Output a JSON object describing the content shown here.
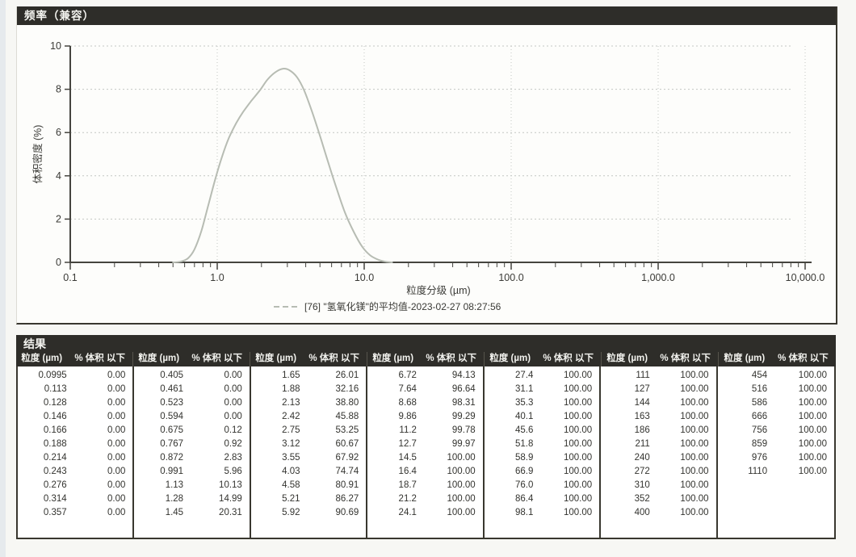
{
  "colors": {
    "header_bar": "#2e2d29",
    "curve": "#b7bcb3",
    "grid": "#c3c7c3",
    "axis": "#45443f",
    "text": "#3a3a36"
  },
  "frequency_panel": {
    "title": "频率（兼容）"
  },
  "chart_data": {
    "type": "line",
    "title": "频率（兼容）",
    "xlabel": "粒度分级 (µm)",
    "ylabel": "体积密度 (%)",
    "x_scale": "log",
    "xlim": [
      0.1,
      10000
    ],
    "ylim": [
      0,
      10
    ],
    "x_tick_labels": [
      "0.1",
      "1.0",
      "10.0",
      "100.0",
      "1,000.0",
      "10,000.0"
    ],
    "y_ticks": [
      0,
      2,
      4,
      6,
      8,
      10
    ],
    "grid": true,
    "legend_position": "bottom-center",
    "legend": "[76] \"氢氧化镁\"的平均值-2023-02-27 08:27:56",
    "series": [
      {
        "name": "[76] \"氢氧化镁\"的平均值-2023-02-27 08:27:56",
        "x": [
          0.5,
          0.56,
          0.63,
          0.7,
          0.78,
          0.87,
          0.97,
          1.08,
          1.2,
          1.35,
          1.5,
          1.7,
          1.95,
          2.2,
          2.5,
          2.8,
          3.1,
          3.5,
          3.9,
          4.4,
          5.0,
          5.7,
          6.5,
          7.4,
          8.5,
          9.7,
          11.0,
          12.5,
          14.0,
          15.5
        ],
        "y": [
          0,
          0.03,
          0.18,
          0.6,
          1.45,
          2.65,
          3.85,
          4.9,
          5.75,
          6.45,
          6.95,
          7.45,
          7.95,
          8.45,
          8.8,
          8.95,
          8.88,
          8.55,
          7.95,
          7.0,
          5.85,
          4.6,
          3.4,
          2.3,
          1.4,
          0.72,
          0.32,
          0.12,
          0.03,
          0
        ]
      }
    ]
  },
  "results": {
    "title": "结果",
    "size_header": "粒度 (µm)",
    "pct_header": "% 体积 以下",
    "groups": [
      [
        [
          "0.0995",
          "0.00"
        ],
        [
          "0.113",
          "0.00"
        ],
        [
          "0.128",
          "0.00"
        ],
        [
          "0.146",
          "0.00"
        ],
        [
          "0.166",
          "0.00"
        ],
        [
          "0.188",
          "0.00"
        ],
        [
          "0.214",
          "0.00"
        ],
        [
          "0.243",
          "0.00"
        ],
        [
          "0.276",
          "0.00"
        ],
        [
          "0.314",
          "0.00"
        ],
        [
          "0.357",
          "0.00"
        ]
      ],
      [
        [
          "0.405",
          "0.00"
        ],
        [
          "0.461",
          "0.00"
        ],
        [
          "0.523",
          "0.00"
        ],
        [
          "0.594",
          "0.00"
        ],
        [
          "0.675",
          "0.12"
        ],
        [
          "0.767",
          "0.92"
        ],
        [
          "0.872",
          "2.83"
        ],
        [
          "0.991",
          "5.96"
        ],
        [
          "1.13",
          "10.13"
        ],
        [
          "1.28",
          "14.99"
        ],
        [
          "1.45",
          "20.31"
        ]
      ],
      [
        [
          "1.65",
          "26.01"
        ],
        [
          "1.88",
          "32.16"
        ],
        [
          "2.13",
          "38.80"
        ],
        [
          "2.42",
          "45.88"
        ],
        [
          "2.75",
          "53.25"
        ],
        [
          "3.12",
          "60.67"
        ],
        [
          "3.55",
          "67.92"
        ],
        [
          "4.03",
          "74.74"
        ],
        [
          "4.58",
          "80.91"
        ],
        [
          "5.21",
          "86.27"
        ],
        [
          "5.92",
          "90.69"
        ]
      ],
      [
        [
          "6.72",
          "94.13"
        ],
        [
          "7.64",
          "96.64"
        ],
        [
          "8.68",
          "98.31"
        ],
        [
          "9.86",
          "99.29"
        ],
        [
          "11.2",
          "99.78"
        ],
        [
          "12.7",
          "99.97"
        ],
        [
          "14.5",
          "100.00"
        ],
        [
          "16.4",
          "100.00"
        ],
        [
          "18.7",
          "100.00"
        ],
        [
          "21.2",
          "100.00"
        ],
        [
          "24.1",
          "100.00"
        ]
      ],
      [
        [
          "27.4",
          "100.00"
        ],
        [
          "31.1",
          "100.00"
        ],
        [
          "35.3",
          "100.00"
        ],
        [
          "40.1",
          "100.00"
        ],
        [
          "45.6",
          "100.00"
        ],
        [
          "51.8",
          "100.00"
        ],
        [
          "58.9",
          "100.00"
        ],
        [
          "66.9",
          "100.00"
        ],
        [
          "76.0",
          "100.00"
        ],
        [
          "86.4",
          "100.00"
        ],
        [
          "98.1",
          "100.00"
        ]
      ],
      [
        [
          "111",
          "100.00"
        ],
        [
          "127",
          "100.00"
        ],
        [
          "144",
          "100.00"
        ],
        [
          "163",
          "100.00"
        ],
        [
          "186",
          "100.00"
        ],
        [
          "211",
          "100.00"
        ],
        [
          "240",
          "100.00"
        ],
        [
          "272",
          "100.00"
        ],
        [
          "310",
          "100.00"
        ],
        [
          "352",
          "100.00"
        ],
        [
          "400",
          "100.00"
        ]
      ],
      [
        [
          "454",
          "100.00"
        ],
        [
          "516",
          "100.00"
        ],
        [
          "586",
          "100.00"
        ],
        [
          "666",
          "100.00"
        ],
        [
          "756",
          "100.00"
        ],
        [
          "859",
          "100.00"
        ],
        [
          "976",
          "100.00"
        ],
        [
          "1110",
          "100.00"
        ]
      ]
    ]
  }
}
